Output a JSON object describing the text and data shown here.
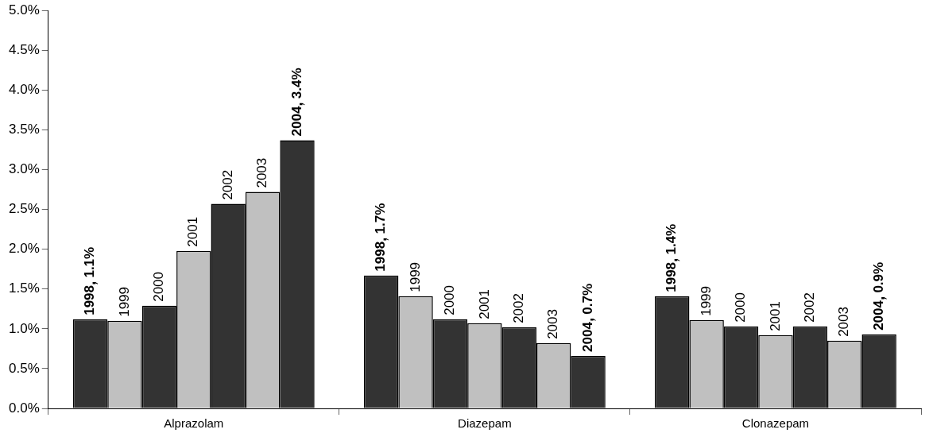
{
  "chart_data": {
    "type": "bar",
    "categories": [
      "Alprazolam",
      "Diazepam",
      "Clonazepam"
    ],
    "series": [
      {
        "name": "1998",
        "color": "#333333",
        "values": [
          1.12,
          1.67,
          1.41
        ],
        "value_labels": [
          "1.1%",
          "1.7%",
          "1.4%"
        ]
      },
      {
        "name": "1999",
        "color": "#c0c0c0",
        "values": [
          1.1,
          1.41,
          1.11
        ]
      },
      {
        "name": "2000",
        "color": "#333333",
        "values": [
          1.29,
          1.12,
          1.03
        ]
      },
      {
        "name": "2001",
        "color": "#c0c0c0",
        "values": [
          1.98,
          1.07,
          0.92
        ]
      },
      {
        "name": "2002",
        "color": "#333333",
        "values": [
          2.57,
          1.02,
          1.03
        ]
      },
      {
        "name": "2003",
        "color": "#c0c0c0",
        "values": [
          2.72,
          0.82,
          0.85
        ]
      },
      {
        "name": "2004",
        "color": "#333333",
        "values": [
          3.37,
          0.66,
          0.93
        ],
        "value_labels": [
          "3.4%",
          "0.7%",
          "0.9%"
        ]
      }
    ],
    "ylim": [
      0,
      5
    ],
    "yticks": [
      {
        "value": 0,
        "label": "0.0%"
      },
      {
        "value": 0.5,
        "label": "0.5%"
      },
      {
        "value": 1,
        "label": "1.0%"
      },
      {
        "value": 1.5,
        "label": "1.5%"
      },
      {
        "value": 2,
        "label": "2.0%"
      },
      {
        "value": 2.5,
        "label": "2.5%"
      },
      {
        "value": 3,
        "label": "3.0%"
      },
      {
        "value": 3.5,
        "label": "3.5%"
      },
      {
        "value": 4,
        "label": "4.0%"
      },
      {
        "value": 4.5,
        "label": "4.5%"
      },
      {
        "value": 5,
        "label": "5.0%"
      }
    ],
    "grid": false,
    "legend": false
  }
}
